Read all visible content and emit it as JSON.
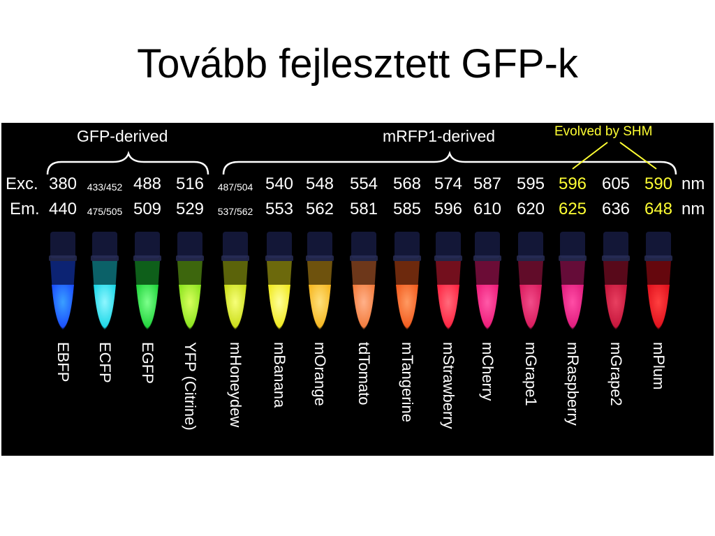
{
  "slide": {
    "title": "Tovább fejlesztett GFP-k"
  },
  "figure": {
    "group_gfp": "GFP-derived",
    "group_mrfp": "mRFP1-derived",
    "shm_label": "Evolved by SHM",
    "row_exc_label": "Exc.",
    "row_em_label": "Em.",
    "unit_exc": "nm",
    "unit_em": "nm",
    "proteins": [
      {
        "name": "EBFP",
        "exc": "380",
        "em": "440",
        "color": "#1a4dff",
        "glow": "#3aa0ff",
        "small": false,
        "shm": false
      },
      {
        "name": "ECFP",
        "exc": "433/452",
        "em": "475/505",
        "color": "#19d6e6",
        "glow": "#8ff6ff",
        "small": true,
        "shm": false
      },
      {
        "name": "EGFP",
        "exc": "488",
        "em": "509",
        "color": "#1fd33a",
        "glow": "#7dff8c",
        "small": false,
        "shm": false
      },
      {
        "name": "YFP (Citrine)",
        "exc": "516",
        "em": "529",
        "color": "#88e21c",
        "glow": "#d8ff5e",
        "small": false,
        "shm": false
      },
      {
        "name": "mHoneydew",
        "exc": "487/504",
        "em": "537/562",
        "color": "#c9dc16",
        "glow": "#f7ff7a",
        "small": true,
        "shm": false
      },
      {
        "name": "mBanana",
        "exc": "540",
        "em": "553",
        "color": "#efe81a",
        "glow": "#ffff9a",
        "small": false,
        "shm": false
      },
      {
        "name": "mOrange",
        "exc": "548",
        "em": "562",
        "color": "#f5b51d",
        "glow": "#ffe07c",
        "small": false,
        "shm": false
      },
      {
        "name": "tdTomato",
        "exc": "554",
        "em": "581",
        "color": "#f27a3a",
        "glow": "#ffb18a",
        "small": false,
        "shm": false
      },
      {
        "name": "mTangerine",
        "exc": "568",
        "em": "585",
        "color": "#f25a1c",
        "glow": "#ff9a62",
        "small": false,
        "shm": false
      },
      {
        "name": "mStrawberry",
        "exc": "574",
        "em": "596",
        "color": "#ff2240",
        "glow": "#ff6b7c",
        "small": false,
        "shm": false
      },
      {
        "name": "mCherry",
        "exc": "587",
        "em": "610",
        "color": "#ee1a78",
        "glow": "#ff5aa8",
        "small": false,
        "shm": false
      },
      {
        "name": "mGrape1",
        "exc": "595",
        "em": "620",
        "color": "#d81a5c",
        "glow": "#f24d8a",
        "small": false,
        "shm": false
      },
      {
        "name": "mRaspberry",
        "exc": "596",
        "em": "625",
        "color": "#e01a7c",
        "glow": "#ff4ea6",
        "small": false,
        "shm": true
      },
      {
        "name": "mGrape2",
        "exc": "605",
        "em": "636",
        "color": "#c4143a",
        "glow": "#e84060",
        "small": false,
        "shm": false
      },
      {
        "name": "mPlum",
        "exc": "590",
        "em": "648",
        "color": "#e0101c",
        "glow": "#ff4040",
        "small": false,
        "shm": true
      }
    ]
  }
}
